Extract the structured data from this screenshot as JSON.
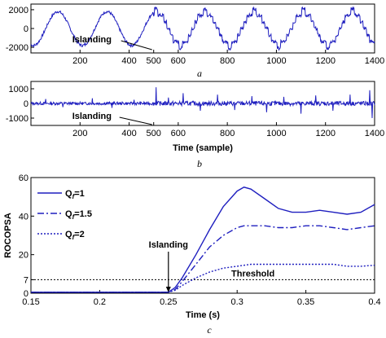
{
  "chart_data": [
    {
      "type": "line",
      "panel": "a",
      "caption": "a",
      "xlim": [
        0,
        1400
      ],
      "ylim": [
        -2600,
        2600
      ],
      "xticks": [
        200,
        400,
        500,
        600,
        800,
        1000,
        1200,
        1400
      ],
      "yticks": [
        2000,
        0,
        -2000
      ],
      "color": "#1f1fbf",
      "annotation": {
        "text": "Islanding",
        "x": 500
      },
      "series": [
        {
          "description": "sinusoid ~2 cycles / 400 samples, amplitude ~1800, then stepped quasi-square wave after sample 500",
          "x": [
            0,
            50,
            100,
            150,
            200,
            250,
            300,
            350,
            400,
            450,
            500,
            530,
            560,
            590,
            620,
            650,
            680,
            710,
            740,
            770,
            800,
            850,
            900,
            950,
            1000,
            1050,
            1100,
            1150,
            1200,
            1250,
            1300,
            1350,
            1400
          ],
          "y": [
            -1200,
            1200,
            1600,
            0,
            -1700,
            -1100,
            1000,
            1700,
            200,
            -1500,
            -1300,
            -200,
            900,
            1500,
            2000,
            1000,
            -300,
            -1300,
            -1900,
            -900,
            1500,
            2000,
            500,
            -1700,
            -1900,
            300,
            1900,
            500,
            -1800,
            -1000,
            1600,
            1100,
            -1500
          ]
        }
      ]
    },
    {
      "type": "line",
      "panel": "b",
      "caption": "b",
      "xlabel": "Time (sample)",
      "xlim": [
        0,
        1400
      ],
      "ylim": [
        -1500,
        1500
      ],
      "xticks": [
        200,
        400,
        500,
        600,
        800,
        1000,
        1200,
        1400
      ],
      "yticks": [
        1000,
        0,
        -1000
      ],
      "color": "#1f1fbf",
      "annotation": {
        "text": "Islanding",
        "x": 500
      },
      "series": [
        {
          "description": "noisy signal around 0 with spikes up to ~±1000, larger after sample 500",
          "spikes": [
            [
              60,
              300
            ],
            [
              130,
              -250
            ],
            [
              250,
              350
            ],
            [
              330,
              -300
            ],
            [
              420,
              250
            ],
            [
              510,
              1100
            ],
            [
              515,
              -900
            ],
            [
              560,
              400
            ],
            [
              620,
              700
            ],
            [
              690,
              -500
            ],
            [
              760,
              600
            ],
            [
              830,
              -450
            ],
            [
              900,
              500
            ],
            [
              960,
              -600
            ],
            [
              1030,
              450
            ],
            [
              1100,
              -700
            ],
            [
              1160,
              550
            ],
            [
              1230,
              -500
            ],
            [
              1300,
              600
            ],
            [
              1380,
              900
            ],
            [
              1390,
              -1000
            ]
          ]
        }
      ]
    },
    {
      "type": "line",
      "panel": "c",
      "caption": "c",
      "xlabel": "Time (s)",
      "ylabel": "ROCOPSA",
      "xlim": [
        0.15,
        0.4
      ],
      "ylim": [
        0,
        60
      ],
      "xticks": [
        0.15,
        0.2,
        0.25,
        0.3,
        0.35,
        0.4
      ],
      "yticks": [
        0,
        7,
        20,
        40,
        60
      ],
      "legend": "top-left",
      "threshold": {
        "value": 7,
        "label": "Threshold"
      },
      "annotation": {
        "text": "Islanding",
        "x": 0.25
      },
      "x": [
        0.15,
        0.25,
        0.255,
        0.26,
        0.27,
        0.28,
        0.29,
        0.3,
        0.305,
        0.31,
        0.32,
        0.33,
        0.34,
        0.35,
        0.36,
        0.37,
        0.38,
        0.39,
        0.4
      ],
      "series": [
        {
          "name": "Q_f=1",
          "style": "solid",
          "values": [
            0.5,
            0.5,
            3,
            8,
            20,
            33,
            45,
            53,
            55,
            54,
            49,
            44,
            42,
            42,
            43,
            42,
            41,
            42,
            46
          ]
        },
        {
          "name": "Q_f=1.5",
          "style": "dashdot",
          "values": [
            0.5,
            0.5,
            2,
            6,
            15,
            24,
            30,
            34,
            35,
            35,
            35,
            34,
            34,
            35,
            35,
            34,
            33,
            34,
            35
          ]
        },
        {
          "name": "Q_f=2",
          "style": "dotted",
          "values": [
            0.5,
            0.5,
            1.5,
            4,
            8,
            11,
            13,
            14,
            14.5,
            15,
            15,
            15,
            15,
            15,
            15,
            15,
            14,
            14,
            14.5
          ]
        }
      ]
    }
  ]
}
